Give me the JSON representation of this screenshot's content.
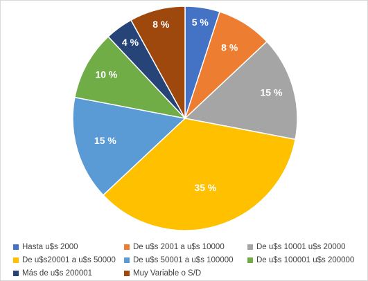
{
  "chart_data": {
    "type": "pie",
    "title": "",
    "legend_position": "bottom",
    "slices": [
      {
        "label": "Hasta u$s 2000",
        "value": 5,
        "display": "5 %",
        "color": "#4472C4"
      },
      {
        "label": "De  u$s 2001 a u$s 10000",
        "value": 8,
        "display": "8 %",
        "color": "#ED7D31"
      },
      {
        "label": "De u$s 10001 u$s 20000",
        "value": 15,
        "display": "15 %",
        "color": "#A5A5A5"
      },
      {
        "label": "De u$s20001 a u$s 50000",
        "value": 35,
        "display": "35 %",
        "color": "#FFC000"
      },
      {
        "label": "De u$s 50001 a u$s 100000",
        "value": 15,
        "display": "15 %",
        "color": "#5B9BD5"
      },
      {
        "label": "De u$s 100001 u$s 200000",
        "value": 10,
        "display": "10 %",
        "color": "#70AD47"
      },
      {
        "label": "Más de u$s 200001",
        "value": 4,
        "display": "4 %",
        "color": "#264478"
      },
      {
        "label": "Muy Variable o S/D",
        "value": 8,
        "display": "8 %",
        "color": "#9E480E"
      }
    ]
  }
}
